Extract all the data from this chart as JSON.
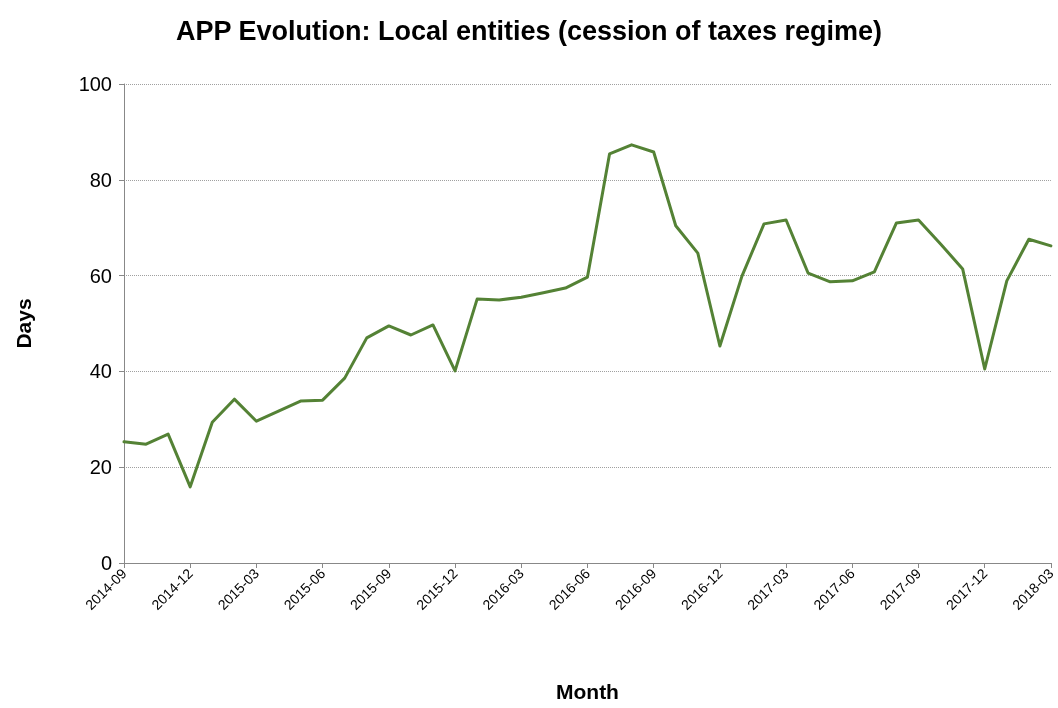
{
  "chart_data": {
    "type": "line",
    "title": "APP Evolution: Local entities (cession of taxes regime)",
    "xlabel": "Month",
    "ylabel": "Days",
    "categories": [
      "2014-09",
      null,
      null,
      "2014-12",
      null,
      null,
      "2015-03",
      null,
      null,
      "2015-06",
      null,
      null,
      "2015-09",
      null,
      null,
      "2015-12",
      null,
      null,
      "2016-03",
      null,
      null,
      "2016-06",
      null,
      null,
      "2016-09",
      null,
      null,
      "2016-12",
      null,
      null,
      "2017-03",
      null,
      null,
      "2017-06",
      null,
      null,
      "2017-09",
      null,
      null,
      "2017-12",
      null,
      null,
      "2018-03"
    ],
    "series": [
      {
        "color": "#548235",
        "values": [
          25.3,
          24.8,
          26.9,
          15.9,
          29.4,
          34.2,
          29.6,
          31.7,
          33.8,
          34.0,
          38.6,
          47.0,
          49.5,
          47.6,
          49.7,
          40.1,
          55.1,
          54.9,
          55.5,
          56.4,
          57.4,
          59.7,
          85.4,
          87.3,
          85.8,
          70.4,
          64.7,
          45.3,
          59.9,
          70.8,
          71.6,
          60.5,
          58.7,
          58.9,
          60.8,
          71.0,
          71.6,
          66.6,
          61.4,
          40.5,
          58.9,
          67.6,
          66.2
        ]
      }
    ],
    "ylim": [
      0,
      100
    ],
    "yticks": [
      0,
      20,
      40,
      60,
      80,
      100
    ],
    "grid": "y",
    "marker": "none",
    "line_style": "solid"
  }
}
